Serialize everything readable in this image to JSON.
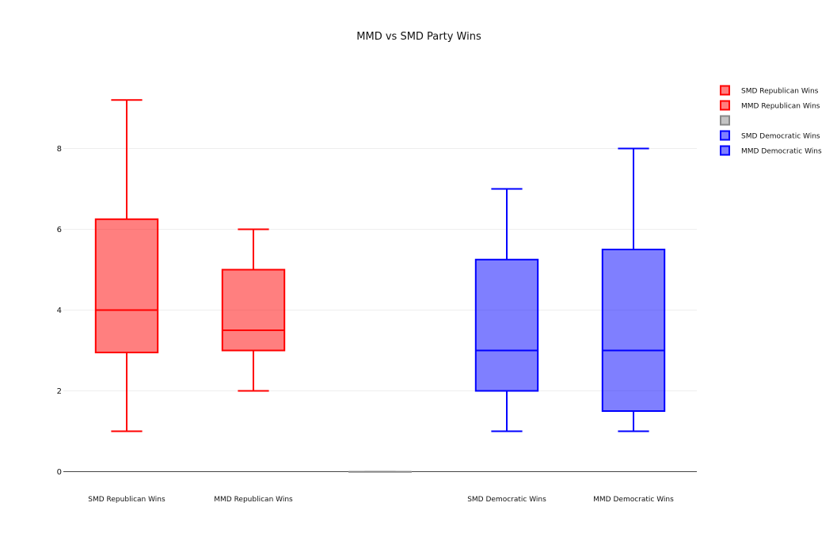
{
  "chart_data": {
    "type": "box",
    "title": "MMD vs SMD Party Wins",
    "xlabel": "",
    "ylabel": "",
    "ylim": [
      0,
      9.6
    ],
    "yticks": [
      0,
      2,
      4,
      6,
      8
    ],
    "grid": true,
    "legend_position": "top-right",
    "categories": [
      "SMD Republican Wins",
      "MMD Republican Wins",
      "",
      "SMD Democratic Wins",
      "MMD Democratic Wins"
    ],
    "series": [
      {
        "name": "SMD Republican Wins",
        "color": "#ff0000",
        "min": 1,
        "q1": 2.95,
        "median": 4,
        "q3": 6.25,
        "max": 9.2
      },
      {
        "name": "MMD Republican Wins",
        "color": "#ff0000",
        "min": 2,
        "q1": 3,
        "median": 3.5,
        "q3": 5,
        "max": 6
      },
      {
        "name": "",
        "color": "#888888",
        "min": 0,
        "q1": 0,
        "median": 0,
        "q3": 0,
        "max": 0
      },
      {
        "name": "SMD Democratic Wins",
        "color": "#0000ff",
        "min": 1,
        "q1": 2,
        "median": 3,
        "q3": 5.25,
        "max": 7
      },
      {
        "name": "MMD Democratic Wins",
        "color": "#0000ff",
        "min": 1,
        "q1": 1.5,
        "median": 3,
        "q3": 5.5,
        "max": 8
      }
    ]
  }
}
